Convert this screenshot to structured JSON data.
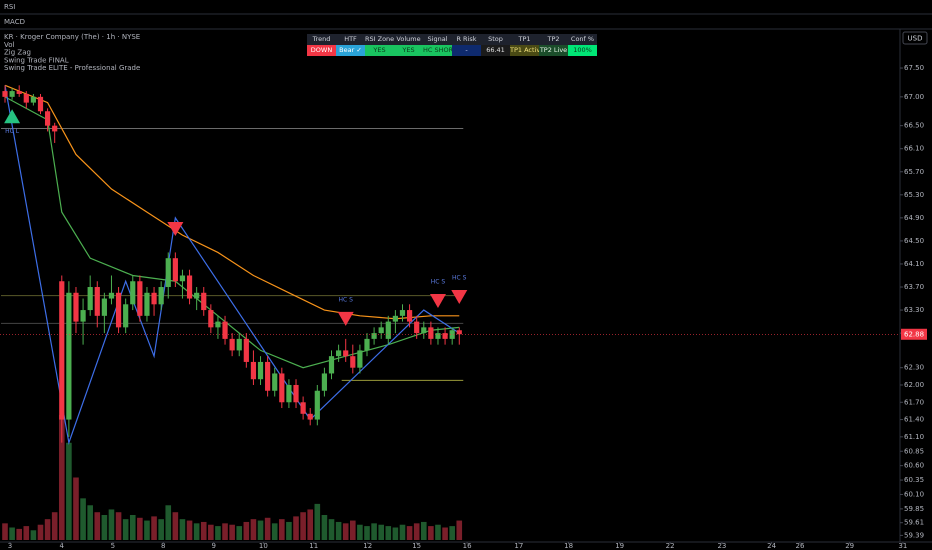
{
  "chart_data": {
    "type": "candlestick",
    "panes": [
      "RSI",
      "MACD"
    ],
    "title": "KR · Kroger Company (The) · 1h · NYSE",
    "indicators": [
      "Vol",
      "Zig Zag",
      "Swing Trade FINAL",
      "Swing Trade ELITE - Professional Grade"
    ],
    "currency": "USD",
    "grid": false,
    "up_color": "#4caf50",
    "down_color": "#f23645",
    "volume_up_color": "#1f5a2e",
    "volume_down_color": "#7a1f2a",
    "ylim": [
      59.31,
      68.16
    ],
    "yticks": [
      {
        "value": 67.5,
        "label": "67.50"
      },
      {
        "value": 67.0,
        "label": "67.00"
      },
      {
        "value": 66.5,
        "label": "66.50"
      },
      {
        "value": 66.1,
        "label": "66.10"
      },
      {
        "value": 65.7,
        "label": "65.70"
      },
      {
        "value": 65.3,
        "label": "65.30"
      },
      {
        "value": 64.9,
        "label": "64.90"
      },
      {
        "value": 64.5,
        "label": "64.50"
      },
      {
        "value": 64.1,
        "label": "64.10"
      },
      {
        "value": 63.7,
        "label": "63.70"
      },
      {
        "value": 63.3,
        "label": "63.30"
      },
      {
        "value": 62.9,
        "label": "62.90"
      },
      {
        "value": 62.3,
        "label": "62.30"
      },
      {
        "value": 62.0,
        "label": "62.00"
      },
      {
        "value": 61.7,
        "label": "61.70"
      },
      {
        "value": 61.4,
        "label": "61.40"
      },
      {
        "value": 61.1,
        "label": "61.10"
      },
      60.85,
      {
        "value": 60.6,
        "label": "60.60"
      },
      60.35,
      {
        "value": 60.1,
        "label": "60.10"
      },
      59.85,
      59.61,
      59.39
    ],
    "xlim": [
      0,
      130.6
    ],
    "xticks": [
      {
        "value": 0.7,
        "label": "3"
      },
      {
        "value": 8,
        "label": "4"
      },
      {
        "value": 15.2,
        "label": "5"
      },
      {
        "value": 22.3,
        "label": "8"
      },
      {
        "value": 29.4,
        "label": "9"
      },
      {
        "value": 36.4,
        "label": "10"
      },
      {
        "value": 43.5,
        "label": "11"
      },
      {
        "value": 51.1,
        "label": "12"
      },
      {
        "value": 58,
        "label": "15"
      },
      {
        "value": 65.1,
        "label": "16"
      },
      {
        "value": 72.4,
        "label": "17"
      },
      {
        "value": 79.4,
        "label": "18"
      },
      {
        "value": 86.6,
        "label": "19"
      },
      {
        "value": 93.7,
        "label": "22"
      },
      {
        "value": 101,
        "label": "23"
      },
      {
        "value": 108,
        "label": "24"
      },
      {
        "value": 112,
        "label": "26"
      },
      {
        "value": 119,
        "label": "29"
      },
      {
        "value": 126.5,
        "label": "31"
      }
    ],
    "candles": {
      "open": [
        67.1,
        67.0,
        67.1,
        67.05,
        66.9,
        67.0,
        66.75,
        66.5,
        63.8,
        61.4,
        63.6,
        63.1,
        63.3,
        63.7,
        63.2,
        63.5,
        63.6,
        63.0,
        63.4,
        63.8,
        63.2,
        63.6,
        63.4,
        63.7,
        64.2,
        63.8,
        63.9,
        63.5,
        63.6,
        63.3,
        63.0,
        63.1,
        62.8,
        62.6,
        62.8,
        62.4,
        62.1,
        62.4,
        61.9,
        62.2,
        61.7,
        62.0,
        61.7,
        61.5,
        61.4,
        61.9,
        62.2,
        62.5,
        62.6,
        62.5,
        62.3,
        62.6,
        62.8,
        62.9,
        62.8,
        63.1,
        63.2,
        63.3,
        63.1,
        62.9,
        63.0,
        62.8,
        62.9,
        62.8,
        62.95
      ],
      "high": [
        67.2,
        67.15,
        67.2,
        67.1,
        67.05,
        67.05,
        66.8,
        66.55,
        63.9,
        63.8,
        63.7,
        63.5,
        63.9,
        63.8,
        63.6,
        63.9,
        63.7,
        63.5,
        63.9,
        63.9,
        63.7,
        63.7,
        63.8,
        64.3,
        64.3,
        64.0,
        64.0,
        63.7,
        63.7,
        63.4,
        63.2,
        63.2,
        62.9,
        62.9,
        62.9,
        62.6,
        62.5,
        62.5,
        62.3,
        62.3,
        62.1,
        62.1,
        61.8,
        61.6,
        62.0,
        62.3,
        62.6,
        62.7,
        62.8,
        62.7,
        62.7,
        62.9,
        63.0,
        63.1,
        63.2,
        63.3,
        63.4,
        63.4,
        63.2,
        63.1,
        63.1,
        63.0,
        63.0,
        63.0,
        63.0
      ],
      "low": [
        66.9,
        66.95,
        67.0,
        66.8,
        66.85,
        66.7,
        66.4,
        66.2,
        61.0,
        61.1,
        62.9,
        62.7,
        63.2,
        63.0,
        62.9,
        63.4,
        62.9,
        62.9,
        63.3,
        63.1,
        63.1,
        63.2,
        63.3,
        63.5,
        63.7,
        63.5,
        63.4,
        63.3,
        63.2,
        62.9,
        62.8,
        62.7,
        62.5,
        62.5,
        62.3,
        62.0,
        62.0,
        61.8,
        61.8,
        61.6,
        61.6,
        61.6,
        61.4,
        61.3,
        61.3,
        61.8,
        62.1,
        62.4,
        62.4,
        62.2,
        62.2,
        62.5,
        62.7,
        62.8,
        62.7,
        62.9,
        63.1,
        63.0,
        62.8,
        62.8,
        62.7,
        62.7,
        62.7,
        62.7,
        62.7
      ],
      "close": [
        67.0,
        67.1,
        67.05,
        66.9,
        67.0,
        66.75,
        66.5,
        66.4,
        61.4,
        63.6,
        63.1,
        63.3,
        63.7,
        63.2,
        63.5,
        63.6,
        63.0,
        63.4,
        63.8,
        63.2,
        63.6,
        63.4,
        63.7,
        64.2,
        63.8,
        63.9,
        63.5,
        63.6,
        63.3,
        63.0,
        63.1,
        62.8,
        62.6,
        62.8,
        62.4,
        62.1,
        62.4,
        61.9,
        62.2,
        61.7,
        62.0,
        61.7,
        61.5,
        61.4,
        61.9,
        62.2,
        62.5,
        62.6,
        62.5,
        62.3,
        62.6,
        62.8,
        62.9,
        63.0,
        63.1,
        63.2,
        63.3,
        63.1,
        62.9,
        63.0,
        62.8,
        62.9,
        62.8,
        62.95,
        62.88
      ]
    },
    "volume": [
      120,
      90,
      80,
      100,
      70,
      110,
      150,
      200,
      900,
      700,
      450,
      300,
      250,
      200,
      180,
      220,
      200,
      150,
      180,
      160,
      140,
      170,
      150,
      250,
      200,
      150,
      140,
      120,
      130,
      110,
      100,
      120,
      110,
      100,
      130,
      150,
      140,
      160,
      120,
      150,
      130,
      170,
      200,
      220,
      260,
      180,
      150,
      130,
      120,
      140,
      110,
      100,
      120,
      110,
      100,
      90,
      110,
      100,
      120,
      130,
      100,
      110,
      90,
      100,
      140
    ],
    "lines": [
      {
        "color": "#f7931a",
        "x": [
          0,
          6,
          10,
          15,
          20,
          25,
          30,
          35,
          40,
          45,
          50,
          55,
          60,
          64
        ],
        "values": [
          67.2,
          66.9,
          66.0,
          65.4,
          65.0,
          64.6,
          64.3,
          63.9,
          63.6,
          63.3,
          63.2,
          63.15,
          63.2,
          63.2
        ]
      },
      {
        "color": "#4caf50",
        "x": [
          0,
          6,
          8,
          12,
          18,
          24,
          30,
          36,
          42,
          48,
          54,
          60,
          64
        ],
        "values": [
          67.0,
          66.6,
          65.0,
          64.2,
          63.9,
          63.8,
          63.2,
          62.6,
          62.3,
          62.5,
          62.7,
          62.95,
          63.0
        ]
      },
      {
        "color": "#3d6ee8",
        "x": [
          0,
          9,
          17,
          21,
          24,
          43,
          59,
          64
        ],
        "values": [
          67.2,
          61.0,
          63.8,
          62.5,
          64.9,
          61.4,
          63.3,
          62.9
        ]
      }
    ],
    "levels": [
      {
        "value": 66.45,
        "x": [
          0,
          64
        ],
        "color": "#6b6b6b"
      },
      {
        "value": 63.55,
        "x": [
          0,
          64
        ],
        "color": "#5a5a2a"
      },
      {
        "value": 63.07,
        "x": [
          0,
          64
        ],
        "color": "#444444"
      },
      {
        "value": 62.08,
        "x": [
          48,
          64
        ],
        "color": "#9a9a3a"
      }
    ],
    "signals": [
      {
        "type": "buy",
        "x": 1,
        "y": 66.68,
        "label": "HC L"
      },
      {
        "type": "sell",
        "x": 24,
        "y": 64.69
      },
      {
        "type": "sell",
        "x": 48,
        "y": 63.13,
        "label": "HC S"
      },
      {
        "type": "sell",
        "x": 61,
        "y": 63.44,
        "label": "HC S"
      },
      {
        "type": "sell",
        "x": 64,
        "y": 63.51,
        "label": "HC S"
      }
    ],
    "last_price": {
      "value": 62.88,
      "label": "62.88"
    },
    "table": {
      "headers": [
        "Trend",
        "HTF",
        "RSI Zone",
        "Volume",
        "Signal",
        "R Risk",
        "Stop",
        "TP1",
        "TP2",
        "Conf %"
      ],
      "cells": [
        {
          "text": "DOWN",
          "color": "#ffffff",
          "background": "#f23645"
        },
        {
          "text": "Bear ✓",
          "color": "#ffffff",
          "background": "#2aa3d8"
        },
        {
          "text": "YES",
          "color": "#0b3b1a",
          "background": "#19c460"
        },
        {
          "text": "YES",
          "color": "#0b3b1a",
          "background": "#19c460"
        },
        {
          "text": "HC SHORT",
          "color": "#0b3b1a",
          "background": "#19c460"
        },
        {
          "text": "-",
          "color": "#cfd6ff",
          "background": "#0e2a6e"
        },
        {
          "text": "66.41",
          "color": "#e0e0e0",
          "background": "#1b1b1b"
        },
        {
          "text": "TP1 Active",
          "color": "#f3e37c",
          "background": "#4a4a14"
        },
        {
          "text": "TP2 Live",
          "color": "#e8f5e9",
          "background": "#1b4d2a"
        },
        {
          "text": "100%",
          "color": "#0b3b1a",
          "background": "#00e676"
        }
      ]
    }
  }
}
